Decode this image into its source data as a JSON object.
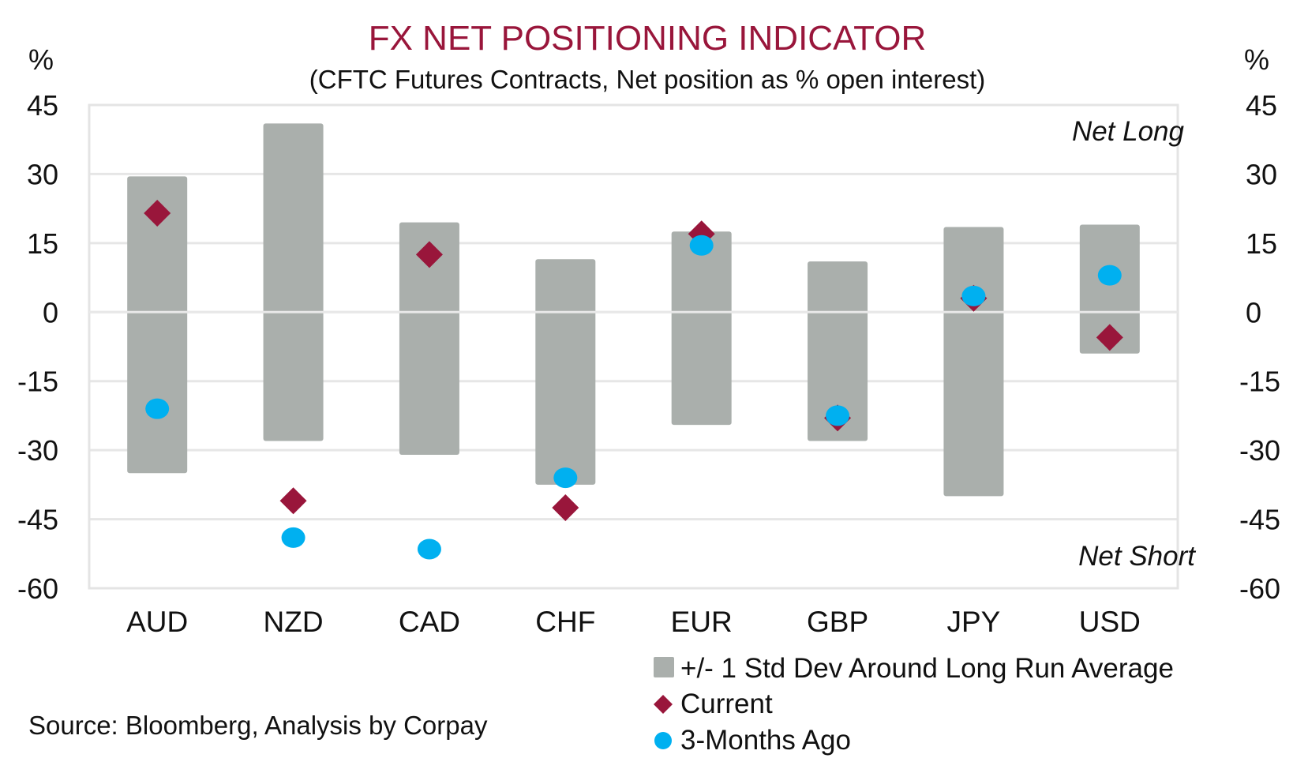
{
  "chart_data": {
    "type": "range-bar-with-markers",
    "title": "FX NET POSITIONING INDICATOR",
    "subtitle": "(CFTC Futures Contracts, Net position as % open interest)",
    "ylabel_left": "%",
    "ylabel_right": "%",
    "ylim": [
      -60,
      45
    ],
    "yticks": [
      45,
      30,
      15,
      0,
      -15,
      -30,
      -45,
      -60
    ],
    "ytick_labels": [
      "45",
      "30",
      "15",
      "0",
      "-15",
      "-30",
      "-45",
      "-60"
    ],
    "grid": true,
    "categories": [
      "AUD",
      "NZD",
      "CAD",
      "CHF",
      "EUR",
      "GBP",
      "JPY",
      "USD"
    ],
    "series": [
      {
        "name": "+/- 1 Std Dev Around Long Run Average",
        "kind": "range",
        "color": "#aaafac",
        "high": [
          29.5,
          41,
          19.5,
          11.5,
          17.5,
          11,
          18.5,
          19
        ],
        "low": [
          -35,
          -28,
          -31,
          -37.5,
          -24.5,
          -28,
          -40,
          -9
        ]
      },
      {
        "name": "Current",
        "kind": "diamond",
        "color": "#99163b",
        "values": [
          21.5,
          -41,
          12.5,
          -42.5,
          17,
          -23,
          3,
          -5.5
        ]
      },
      {
        "name": "3-Months Ago",
        "kind": "circle",
        "color": "#00b0f0",
        "values": [
          -21,
          -49,
          -51.5,
          -36,
          14.5,
          -22.5,
          3.5,
          8
        ]
      }
    ],
    "annotations": {
      "top_right": "Net Long",
      "bottom_right": "Net Short"
    },
    "legend": {
      "placement": "bottom-right",
      "entries": [
        {
          "label": "+/- 1 Std Dev Around Long Run Average",
          "marker": "square",
          "color": "#aaafac"
        },
        {
          "label": "Current",
          "marker": "diamond",
          "color": "#99163b"
        },
        {
          "label": "3-Months Ago",
          "marker": "circle",
          "color": "#00b0f0"
        }
      ]
    },
    "source": "Source: Bloomberg, Analysis by Corpay"
  }
}
